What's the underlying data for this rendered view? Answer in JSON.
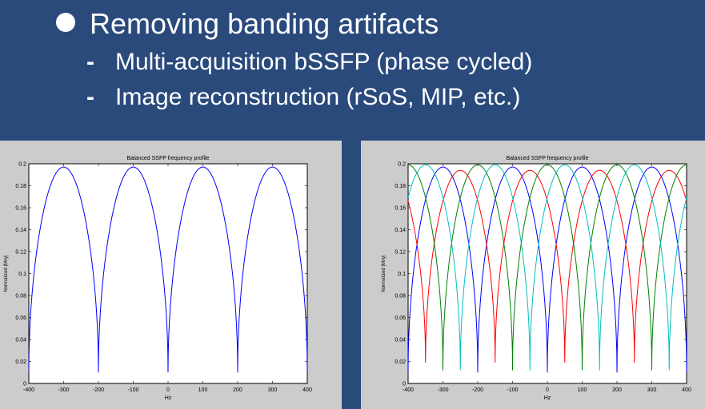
{
  "bullets": {
    "main": "Removing banding artifacts",
    "sub": [
      "Multi-acquisition bSSFP (phase cycled)",
      "Image reconstruction (rSoS, MIP, etc.)"
    ],
    "dash": "-"
  },
  "chart_data": [
    {
      "type": "line",
      "title": "Balanced SSFP frequency profile",
      "xlabel": "Hz",
      "ylabel": "Normalized |Mxy|",
      "xlim": [
        -400,
        400
      ],
      "ylim": [
        0,
        0.2
      ],
      "xticks": [
        -400,
        -300,
        -200,
        -100,
        0,
        100,
        200,
        300,
        400
      ],
      "yticks": [
        0,
        0.02,
        0.04,
        0.06,
        0.08,
        0.1,
        0.12,
        0.14,
        0.16,
        0.18,
        0.2
      ],
      "grid": false,
      "period_hz": 200,
      "series": [
        {
          "color": "#0000ff",
          "peak": 0.197,
          "min": 0.01,
          "phase_offset_hz": 0
        }
      ]
    },
    {
      "type": "line",
      "title": "Balanced SSFP frequency profile",
      "xlabel": "Hz",
      "ylabel": "Normalized |Mxy|",
      "xlim": [
        -400,
        400
      ],
      "ylim": [
        0,
        0.2
      ],
      "xticks": [
        -400,
        -300,
        -200,
        -100,
        0,
        100,
        200,
        300,
        400
      ],
      "yticks": [
        0,
        0.02,
        0.04,
        0.06,
        0.08,
        0.1,
        0.12,
        0.14,
        0.16,
        0.18,
        0.2
      ],
      "grid": false,
      "period_hz": 200,
      "series": [
        {
          "color": "#0000ff",
          "peak": 0.197,
          "min": 0.01,
          "phase_offset_hz": 0
        },
        {
          "color": "#ff0000",
          "peak": 0.194,
          "min": 0.019,
          "phase_offset_hz": 50
        },
        {
          "color": "#008000",
          "peak": 0.199,
          "min": 0.012,
          "phase_offset_hz": 100
        },
        {
          "color": "#00bfbf",
          "peak": 0.199,
          "min": 0.012,
          "phase_offset_hz": 150
        }
      ]
    }
  ]
}
